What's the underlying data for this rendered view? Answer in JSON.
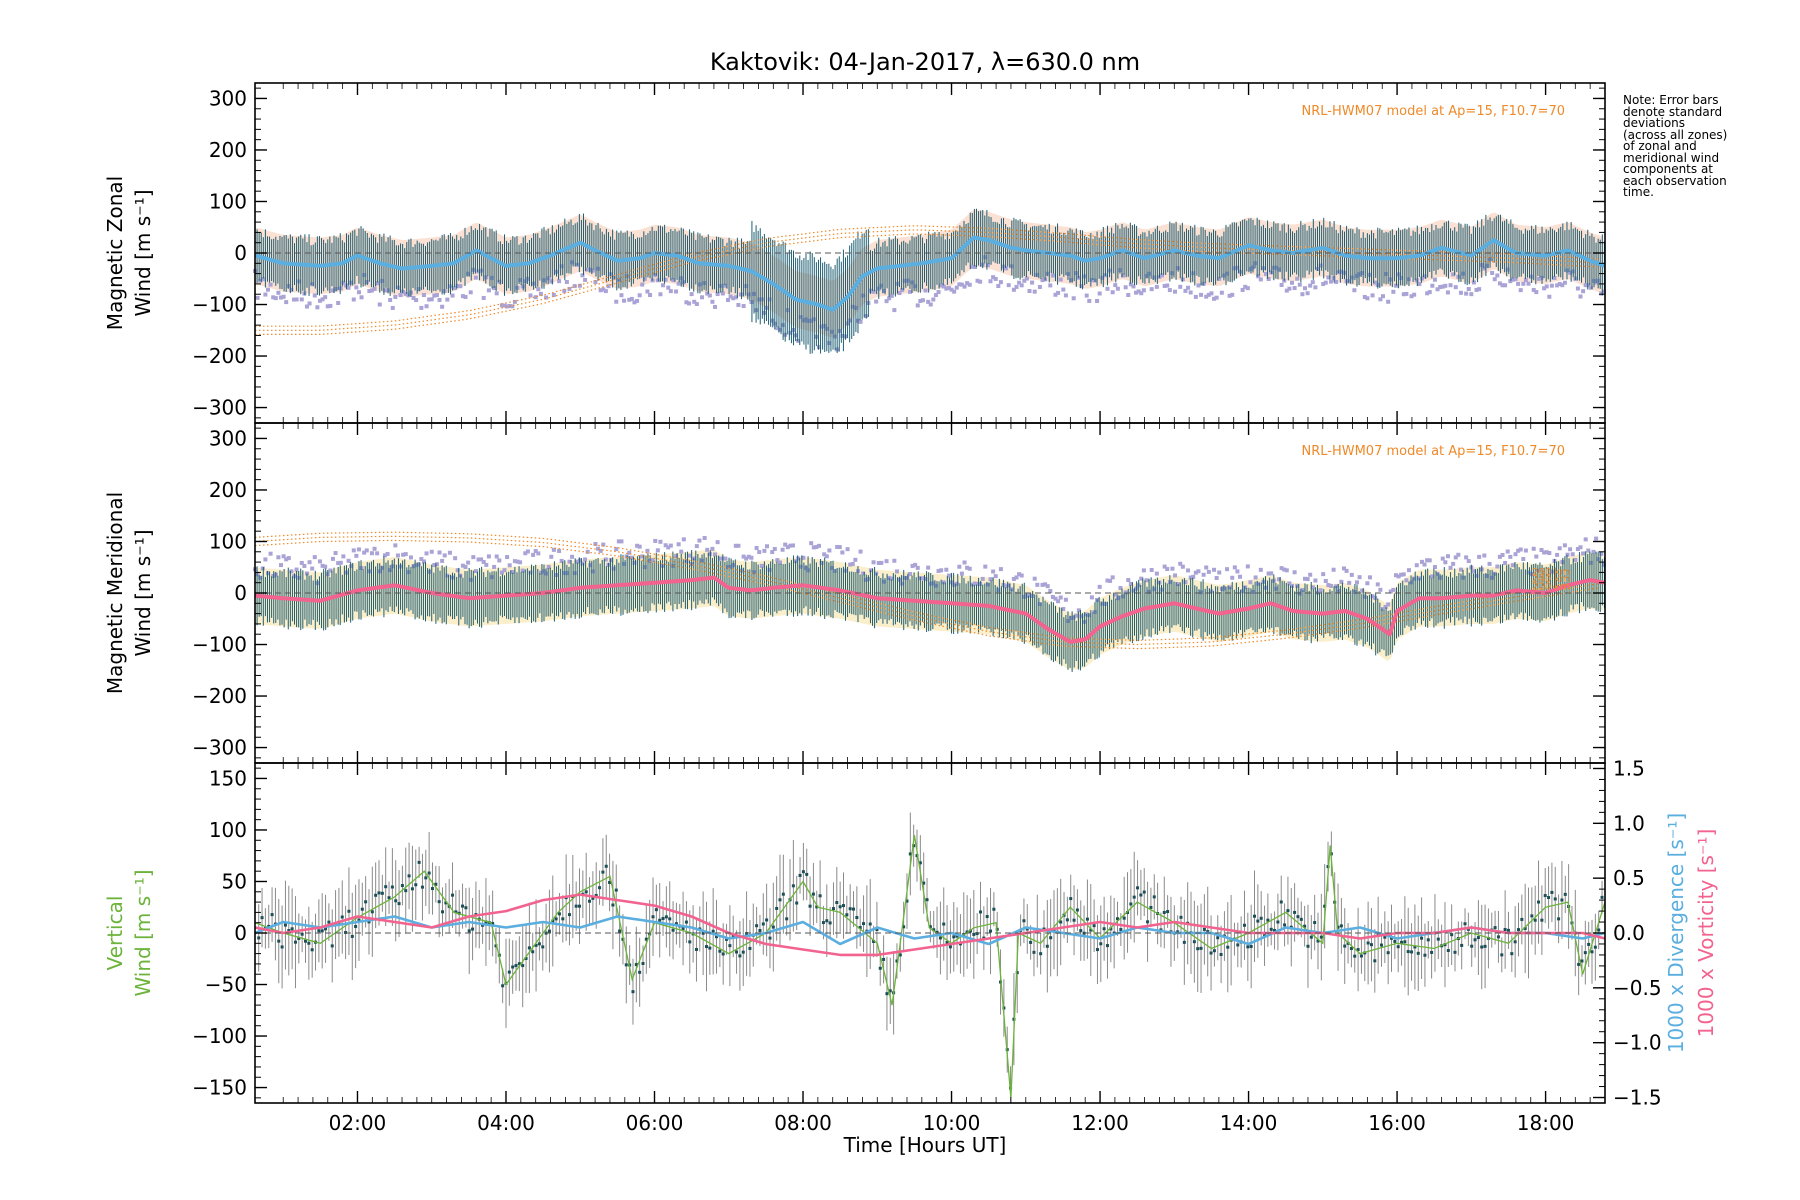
{
  "figure": {
    "title": "Kaktovik: 04-Jan-2017, λ=630.0 nm",
    "note": "Note: Error bars\ndenote standard\ndeviations\n(across all zones)\nof zonal and\nmeridional wind\ncomponents at\neach observation\ntime.",
    "xlabel": "Time [Hours UT]",
    "xticks": [
      "02:00",
      "04:00",
      "06:00",
      "08:00",
      "10:00",
      "12:00",
      "14:00",
      "16:00",
      "18:00"
    ],
    "xtick_hours": [
      2,
      4,
      6,
      8,
      10,
      12,
      14,
      16,
      18
    ],
    "x_range_hours": [
      0.62,
      18.8
    ]
  },
  "panels": [
    {
      "ylabel_line1": "Magnetic Zonal",
      "ylabel_line2": "Wind [m s⁻¹]",
      "yticks": [
        "300",
        "200",
        "100",
        "0",
        "−100",
        "−200",
        "−300"
      ],
      "model_label": "NRL-HWM07 model at Ap=15, F10.7=70"
    },
    {
      "ylabel_line1": "Magnetic Meridional",
      "ylabel_line2": "Wind [m s⁻¹]",
      "yticks": [
        "300",
        "200",
        "100",
        "0",
        "−100",
        "−200",
        "−300"
      ],
      "model_label": "NRL-HWM07 model at Ap=15, F10.7=70",
      "model_altitudes": [
        "260 km",
        "240 km",
        "220 km"
      ]
    },
    {
      "ylabel_line1": "Vertical",
      "ylabel_line2": "Wind [m s⁻¹]",
      "yticks": [
        "150",
        "100",
        "50",
        "0",
        "−50",
        "−100",
        "−150"
      ],
      "right_yticks": [
        "1.5",
        "1.0",
        "0.5",
        "0.0",
        "−0.5",
        "−1.0",
        "−1.5"
      ],
      "right_label_divergence": "1000 x Divergence [s⁻¹]",
      "right_label_vorticity": "1000 x Vorticity [s⁻¹]"
    }
  ],
  "colors": {
    "zonal_mean": "#5aaee0",
    "meridional_mean": "#f2638f",
    "vertical": "#6bb33a",
    "divergence": "#5aaee0",
    "vorticity": "#f2638f",
    "model": "#ee8a2a",
    "errorbar": "#1f5f73",
    "scatter": "#a9a3d6",
    "band_peach": "#f7c9ae",
    "band_yellow": "#f7e0a0"
  },
  "chart_data": [
    {
      "type": "line",
      "title": "Kaktovik: 04-Jan-2017, λ=630.0 nm",
      "xlabel": "Time [Hours UT]",
      "ylabel": "Magnetic Zonal Wind [m s⁻¹]",
      "ylim": [
        -330,
        330
      ],
      "xlim": [
        0.62,
        18.8
      ],
      "series": [
        {
          "name": "mean",
          "x": [
            0.62,
            1.0,
            1.5,
            1.8,
            2.0,
            2.3,
            2.6,
            3.0,
            3.3,
            3.6,
            3.8,
            4.0,
            4.3,
            4.6,
            5.0,
            5.2,
            5.5,
            5.8,
            6.0,
            6.3,
            6.6,
            7.0,
            7.3,
            7.6,
            7.9,
            8.2,
            8.4,
            8.6,
            8.8,
            9.0,
            9.3,
            9.6,
            10.0,
            10.3,
            10.5,
            10.8,
            11.0,
            11.3,
            11.6,
            11.8,
            12.0,
            12.3,
            12.6,
            13.0,
            13.3,
            13.6,
            14.0,
            14.3,
            14.6,
            15.0,
            15.3,
            15.6,
            16.0,
            16.3,
            16.6,
            17.0,
            17.3,
            17.6,
            18.0,
            18.3,
            18.6,
            18.8
          ],
          "values": [
            -5,
            -20,
            -25,
            -20,
            -5,
            -20,
            -30,
            -25,
            -20,
            5,
            -10,
            -25,
            -20,
            -5,
            20,
            5,
            -15,
            -10,
            0,
            -5,
            -20,
            -25,
            -35,
            -60,
            -90,
            -100,
            -110,
            -85,
            -45,
            -30,
            -25,
            -20,
            -10,
            30,
            25,
            10,
            5,
            0,
            -5,
            -15,
            -10,
            5,
            -10,
            5,
            -5,
            -10,
            15,
            5,
            0,
            10,
            -5,
            -10,
            -10,
            -5,
            10,
            -5,
            25,
            0,
            -5,
            5,
            -15,
            -25
          ]
        },
        {
          "name": "NRL-HWM07 model",
          "x": [
            0.62,
            1.5,
            2.5,
            3.5,
            4.5,
            5.5,
            6.5,
            7.5,
            8.5,
            9.5,
            10.5,
            11.5,
            12.5,
            13.5,
            14.5,
            15.5,
            16.5,
            17.5,
            18.8
          ],
          "values": [
            -150,
            -150,
            -140,
            -120,
            -90,
            -50,
            -10,
            20,
            38,
            45,
            40,
            30,
            18,
            10,
            5,
            0,
            -5,
            -10,
            -20
          ]
        }
      ]
    },
    {
      "type": "line",
      "ylabel": "Magnetic Meridional Wind [m s⁻¹]",
      "ylim": [
        -330,
        330
      ],
      "xlim": [
        0.62,
        18.8
      ],
      "series": [
        {
          "name": "mean",
          "x": [
            0.62,
            1.0,
            1.5,
            2.0,
            2.5,
            3.0,
            3.5,
            4.0,
            4.5,
            5.0,
            5.5,
            6.0,
            6.5,
            6.8,
            7.0,
            7.3,
            7.6,
            8.0,
            8.5,
            9.0,
            9.5,
            10.0,
            10.5,
            11.0,
            11.3,
            11.6,
            11.8,
            12.0,
            12.3,
            12.6,
            13.0,
            13.3,
            13.6,
            14.0,
            14.3,
            14.6,
            15.0,
            15.3,
            15.6,
            15.9,
            16.0,
            16.3,
            16.6,
            17.0,
            17.3,
            17.6,
            18.0,
            18.3,
            18.6,
            18.8
          ],
          "values": [
            -5,
            -10,
            -15,
            5,
            15,
            0,
            -10,
            -5,
            0,
            10,
            15,
            20,
            25,
            30,
            10,
            5,
            10,
            15,
            5,
            -10,
            -15,
            -20,
            -25,
            -40,
            -70,
            -95,
            -90,
            -65,
            -45,
            -30,
            -20,
            -30,
            -40,
            -30,
            -20,
            -35,
            -40,
            -35,
            -50,
            -80,
            -35,
            -10,
            -10,
            -5,
            -5,
            5,
            0,
            15,
            25,
            20
          ]
        },
        {
          "name": "NRL-HWM07 model",
          "x": [
            0.62,
            1.5,
            2.5,
            3.5,
            4.5,
            5.5,
            6.5,
            7.5,
            8.5,
            9.5,
            10.5,
            11.5,
            12.5,
            13.5,
            14.5,
            15.5,
            16.5,
            17.5,
            18.8
          ],
          "values": [
            100,
            108,
            110,
            107,
            98,
            80,
            55,
            25,
            -10,
            -45,
            -75,
            -95,
            -100,
            -95,
            -80,
            -60,
            -35,
            -10,
            20
          ]
        }
      ]
    },
    {
      "type": "line",
      "ylabel": "Vertical Wind [m s⁻¹]",
      "ylim": [
        -165,
        165
      ],
      "y2label": "1000 x Divergence [s⁻¹] / 1000 x Vorticity [s⁻¹]",
      "y2lim": [
        -1.55,
        1.55
      ],
      "xlim": [
        0.62,
        18.8
      ],
      "series": [
        {
          "name": "Vertical",
          "axis": "left",
          "x": [
            0.62,
            1.0,
            1.5,
            2.0,
            2.5,
            2.9,
            3.3,
            3.8,
            4.0,
            4.3,
            4.7,
            5.0,
            5.4,
            5.7,
            6.0,
            6.5,
            7.0,
            7.5,
            8.0,
            8.2,
            8.5,
            9.0,
            9.2,
            9.5,
            9.7,
            10.0,
            10.3,
            10.6,
            10.8,
            10.9,
            11.2,
            11.6,
            12.0,
            12.5,
            13.0,
            13.5,
            14.0,
            14.5,
            15.0,
            15.1,
            15.2,
            15.5,
            16.0,
            16.5,
            17.0,
            17.5,
            18.0,
            18.3,
            18.5,
            18.8
          ],
          "values": [
            10,
            0,
            -10,
            15,
            35,
            60,
            20,
            10,
            -50,
            -20,
            20,
            40,
            55,
            -45,
            10,
            0,
            -20,
            0,
            50,
            25,
            20,
            -10,
            -70,
            95,
            5,
            -10,
            5,
            10,
            -160,
            0,
            -10,
            25,
            -5,
            30,
            10,
            -15,
            0,
            20,
            -10,
            85,
            0,
            -20,
            -10,
            -15,
            0,
            -10,
            25,
            30,
            -40,
            30
          ]
        },
        {
          "name": "1000 x Divergence",
          "axis": "right",
          "x": [
            0.62,
            1.0,
            1.5,
            2.0,
            2.5,
            3.0,
            3.5,
            4.0,
            4.5,
            5.0,
            5.5,
            6.0,
            6.5,
            7.0,
            7.5,
            8.0,
            8.5,
            9.0,
            9.5,
            10.0,
            10.5,
            11.0,
            11.5,
            12.0,
            12.5,
            13.0,
            13.5,
            14.0,
            14.5,
            15.0,
            15.5,
            16.0,
            16.5,
            17.0,
            17.5,
            18.0,
            18.5,
            18.8
          ],
          "values": [
            0.0,
            0.1,
            0.05,
            0.1,
            0.15,
            0.05,
            0.1,
            0.05,
            0.1,
            0.05,
            0.15,
            0.1,
            0.05,
            -0.05,
            0.0,
            0.1,
            -0.1,
            0.05,
            -0.05,
            0.0,
            -0.1,
            0.05,
            0.0,
            -0.05,
            0.05,
            0.0,
            0.0,
            -0.1,
            0.05,
            0.0,
            0.05,
            -0.05,
            0.0,
            0.05,
            0.0,
            0.0,
            -0.05,
            0.0
          ]
        },
        {
          "name": "1000 x Vorticity",
          "axis": "right",
          "x": [
            0.62,
            1.0,
            1.5,
            2.0,
            2.5,
            3.0,
            3.5,
            4.0,
            4.5,
            5.0,
            5.5,
            6.0,
            6.5,
            7.0,
            7.5,
            8.0,
            8.5,
            9.0,
            9.5,
            10.0,
            10.5,
            11.0,
            11.5,
            12.0,
            12.5,
            13.0,
            13.5,
            14.0,
            14.5,
            15.0,
            15.5,
            16.0,
            16.5,
            17.0,
            17.5,
            18.0,
            18.5,
            18.8
          ],
          "values": [
            0.05,
            0.0,
            0.05,
            0.15,
            0.1,
            0.05,
            0.15,
            0.2,
            0.3,
            0.35,
            0.3,
            0.25,
            0.15,
            0.0,
            -0.1,
            -0.15,
            -0.2,
            -0.2,
            -0.15,
            -0.1,
            -0.05,
            0.0,
            0.05,
            0.1,
            0.05,
            0.1,
            0.05,
            0.0,
            0.0,
            0.0,
            -0.05,
            0.0,
            0.0,
            0.05,
            0.0,
            0.0,
            0.0,
            -0.05
          ]
        }
      ]
    }
  ]
}
